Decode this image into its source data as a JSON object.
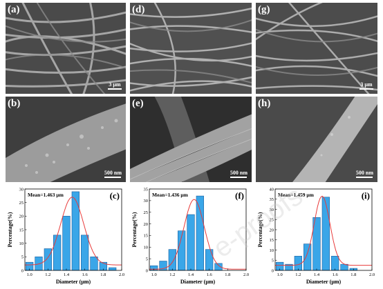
{
  "sem_panels": [
    {
      "label": "(a)",
      "scale": "3 μm"
    },
    {
      "label": "(d)",
      "scale": ""
    },
    {
      "label": "(g)",
      "scale": "3 μm"
    },
    {
      "label": "(b)",
      "scale": "500 nm"
    },
    {
      "label": "(e)",
      "scale": "500 nm"
    },
    {
      "label": "(h)",
      "scale": "500 nm"
    }
  ],
  "colors": {
    "bar_fill": "#3aa6e8",
    "bar_stroke": "#1a5f9e",
    "fit_line": "#e83a3a"
  },
  "watermark": "e-proofs",
  "chart_data": [
    {
      "type": "bar",
      "panel_label": "(c)",
      "mean_label": "Mean=1.463 μm",
      "xlabel": "Diameter (μm)",
      "ylabel": "Percentage(%)",
      "x": [
        1.0,
        1.1,
        1.2,
        1.3,
        1.4,
        1.5,
        1.6,
        1.7,
        1.8,
        1.9
      ],
      "values": [
        3,
        5,
        8,
        13,
        20,
        29,
        13,
        5,
        3,
        1
      ],
      "xlim": [
        0.95,
        2.0
      ],
      "ylim": [
        0,
        30
      ],
      "xticks": [
        "1.0",
        "1.2",
        "1.4",
        "1.6",
        "1.8",
        "2.0"
      ],
      "yticks": [
        "0",
        "5",
        "10",
        "15",
        "20",
        "25",
        "30"
      ],
      "fit": {
        "mean": 1.463,
        "sd": 0.125,
        "peak": 25,
        "base": 2
      }
    },
    {
      "type": "bar",
      "panel_label": "(f)",
      "mean_label": "Mean=1.436 μm",
      "xlabel": "Diameter (μm)",
      "ylabel": "Percentage(%)",
      "x": [
        1.0,
        1.1,
        1.2,
        1.3,
        1.4,
        1.5,
        1.6,
        1.7
      ],
      "values": [
        2,
        4,
        9,
        17,
        24,
        32,
        9,
        3
      ],
      "xlim": [
        0.95,
        2.0
      ],
      "ylim": [
        0,
        35
      ],
      "xticks": [
        "1.0",
        "1.2",
        "1.4",
        "1.6",
        "1.8",
        "2.0"
      ],
      "yticks": [
        "0",
        "5",
        "10",
        "15",
        "20",
        "25",
        "30",
        "35"
      ],
      "fit": {
        "mean": 1.436,
        "sd": 0.11,
        "peak": 30,
        "base": 0.5
      }
    },
    {
      "type": "bar",
      "panel_label": "(i)",
      "mean_label": "Mean=1.459 μm",
      "xlabel": "Diameter (μm)",
      "ylabel": "Percentage(%)",
      "x": [
        1.0,
        1.1,
        1.2,
        1.3,
        1.4,
        1.5,
        1.6,
        1.7,
        1.8
      ],
      "values": [
        4,
        3,
        7,
        13,
        26,
        36,
        7,
        3,
        1
      ],
      "xlim": [
        0.95,
        2.0
      ],
      "ylim": [
        0,
        40
      ],
      "xticks": [
        "1.0",
        "1.2",
        "1.4",
        "1.6",
        "1.8",
        "2.0"
      ],
      "yticks": [
        "0",
        "5",
        "10",
        "15",
        "20",
        "25",
        "30",
        "35",
        "40"
      ],
      "fit": {
        "mean": 1.459,
        "sd": 0.085,
        "peak": 34,
        "base": 2.5
      }
    }
  ]
}
